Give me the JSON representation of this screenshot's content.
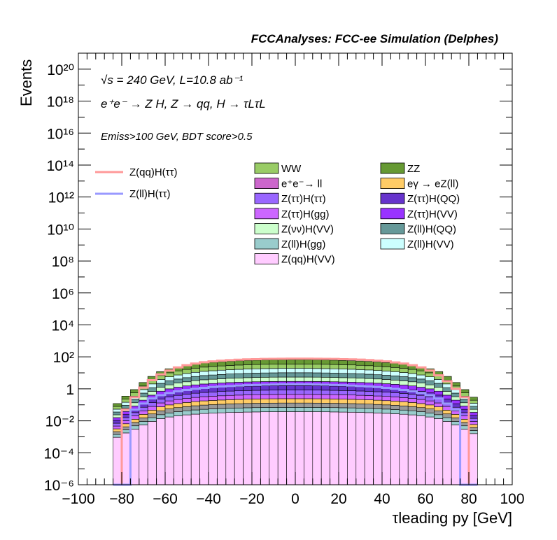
{
  "chart_data": {
    "type": "bar",
    "title": "FCCAnalyses: FCC-ee Simulation (Delphes)",
    "annotations": [
      "√s = 240 GeV, L=10.8 ab⁻¹",
      "e⁺e⁻ → Z H, Z → qq, H → τLτL",
      "Emiss>100 GeV, BDT score>0.5"
    ],
    "xlabel": "τleading py [GeV]",
    "ylabel": "Events",
    "xlim": [
      -100,
      100
    ],
    "ylim": [
      1e-06,
      1e+21
    ],
    "yscale": "log",
    "x_ticks": [
      "−100",
      "−80",
      "−60",
      "−40",
      "−20",
      "0",
      "20",
      "40",
      "60",
      "80",
      "100"
    ],
    "y_ticks": [
      "10⁻⁶",
      "10⁻⁴",
      "10⁻²",
      "1",
      "10²",
      "10⁴",
      "10⁶",
      "10⁸",
      "10¹⁰",
      "10¹²",
      "10¹⁴",
      "10¹⁶",
      "10¹⁸",
      "10²⁰"
    ],
    "bin_edges": [
      -84,
      -80,
      -76,
      -72,
      -68,
      -64,
      -60,
      -56,
      -52,
      -48,
      -44,
      -40,
      -36,
      -32,
      -28,
      -24,
      -20,
      -16,
      -12,
      -8,
      -4,
      0,
      4,
      8,
      12,
      16,
      20,
      24,
      28,
      32,
      36,
      40,
      44,
      48,
      52,
      56,
      60,
      64,
      68,
      72,
      76,
      80,
      84
    ],
    "stack_order_bottom_to_top": [
      "Z(qq)H(VV)",
      "Z(ll)H(gg)",
      "e+e- → ll",
      "eγ → eZ(ll)",
      "Z(ττ)H(gg)",
      "Z(ττ)H(ττ)",
      "Z(ττ)H(QQ)",
      "Z(ττ)H(VV)",
      "Z(νν)H(VV)",
      "Z(ll)H(QQ)",
      "Z(ll)H(VV)",
      "WW",
      "ZZ"
    ],
    "stack_totals": [
      0.12,
      0.35,
      0.9,
      2.5,
      6,
      12,
      18,
      24,
      30,
      36,
      42,
      46,
      50,
      54,
      57,
      60,
      62,
      64,
      65,
      66,
      66,
      66,
      66,
      65,
      64,
      62,
      60,
      58,
      55,
      52,
      48,
      44,
      40,
      35,
      30,
      24,
      18,
      12,
      6,
      2.5,
      0.9,
      0.3
    ],
    "legend": [
      {
        "name": "Z(qq)H(ττ)",
        "style": "line",
        "color": "#ff9999"
      },
      {
        "name": "Z(ll)H(ττ)",
        "style": "line",
        "color": "#9999ff"
      },
      {
        "name": "WW",
        "style": "fill",
        "color": "#99cc66"
      },
      {
        "name": "ZZ",
        "style": "fill",
        "color": "#669933"
      },
      {
        "name": "e⁺e⁻→ ll",
        "style": "fill",
        "color": "#cc66cc"
      },
      {
        "name": "eγ → eZ(ll)",
        "style": "fill",
        "color": "#ffcc66"
      },
      {
        "name": "Z(ττ)H(ττ)",
        "style": "fill",
        "color": "#9966ff"
      },
      {
        "name": "Z(ττ)H(QQ)",
        "style": "fill",
        "color": "#6633cc"
      },
      {
        "name": "Z(ττ)H(gg)",
        "style": "fill",
        "color": "#cc66ff"
      },
      {
        "name": "Z(ττ)H(VV)",
        "style": "fill",
        "color": "#9933ff"
      },
      {
        "name": "Z(νν)H(VV)",
        "style": "fill",
        "color": "#ccffcc"
      },
      {
        "name": "Z(ll)H(QQ)",
        "style": "fill",
        "color": "#669999"
      },
      {
        "name": "Z(ll)H(gg)",
        "style": "fill",
        "color": "#99cccc"
      },
      {
        "name": "Z(ll)H(VV)",
        "style": "fill",
        "color": "#ccffff"
      },
      {
        "name": "Z(qq)H(VV)",
        "style": "fill",
        "color": "#ffccff"
      }
    ],
    "signal_lines": [
      {
        "name": "Z(qq)H(ττ)",
        "color": "#ff9999",
        "values": [
          1e-06,
          0.05,
          0.3,
          1.2,
          3.5,
          8,
          14,
          22,
          30,
          38,
          46,
          52,
          58,
          62,
          66,
          70,
          72,
          74,
          75,
          76,
          77,
          77,
          77,
          76,
          75,
          74,
          72,
          70,
          67,
          63,
          58,
          52,
          45,
          38,
          30,
          22,
          14,
          7,
          3,
          1,
          0.3,
          1e-06
        ]
      },
      {
        "name": "Z(ll)H(ττ)",
        "color": "#9999ff",
        "values": [
          1e-06,
          1e-06,
          0.05,
          0.12,
          0.25,
          0.4,
          0.55,
          0.7,
          0.85,
          1,
          1.15,
          1.3,
          1.4,
          1.5,
          1.6,
          1.7,
          1.75,
          1.8,
          1.85,
          1.9,
          1.9,
          1.9,
          1.9,
          1.85,
          1.8,
          1.75,
          1.7,
          1.6,
          1.5,
          1.4,
          1.3,
          1.15,
          1,
          0.85,
          0.7,
          0.55,
          0.4,
          0.25,
          0.12,
          0.05,
          1e-06,
          1e-06
        ]
      }
    ]
  }
}
